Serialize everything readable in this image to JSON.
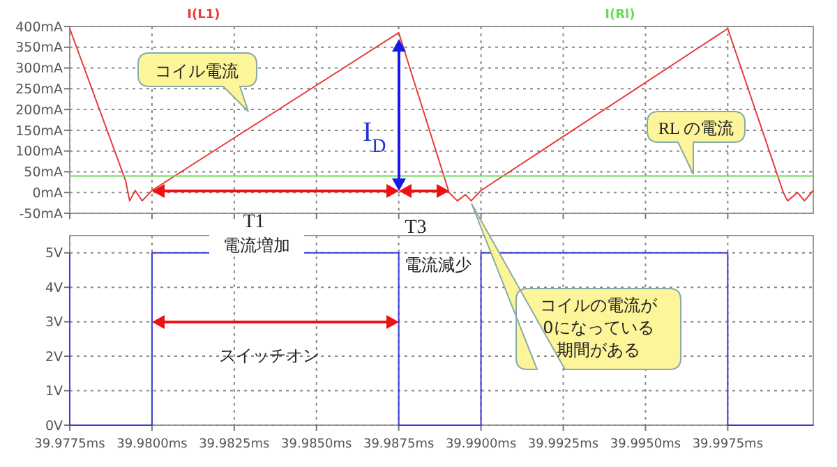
{
  "chart_data": [
    {
      "type": "line",
      "xlim": [
        39.9775,
        40.0001
      ],
      "ylim": [
        -50,
        400
      ],
      "xticks": [
        {
          "value": 39.9775,
          "label": null
        },
        {
          "value": 39.98,
          "label": null
        },
        {
          "value": 39.9825,
          "label": null
        },
        {
          "value": 39.985,
          "label": null
        },
        {
          "value": 39.9875,
          "label": null
        },
        {
          "value": 39.99,
          "label": null
        },
        {
          "value": 39.9925,
          "label": null
        },
        {
          "value": 39.995,
          "label": null
        },
        {
          "value": 39.9975,
          "label": null
        }
      ],
      "yticks": [
        {
          "value": -50,
          "label": "-50mA"
        },
        {
          "value": 0,
          "label": "0mA"
        },
        {
          "value": 50,
          "label": "50mA"
        },
        {
          "value": 100,
          "label": "100mA"
        },
        {
          "value": 150,
          "label": "150mA"
        },
        {
          "value": 200,
          "label": "200mA"
        },
        {
          "value": 250,
          "label": "250mA"
        },
        {
          "value": 300,
          "label": "300mA"
        },
        {
          "value": 350,
          "label": "350mA"
        },
        {
          "value": 400,
          "label": "400mA"
        }
      ],
      "tick_labels": "y",
      "grid": true,
      "legend": "top",
      "series": [
        {
          "name": "I(L1)",
          "color": "#e83a3a",
          "x": [
            39.9775,
            39.9792,
            39.97932,
            39.97949,
            39.9797,
            39.98,
            39.9875,
            39.98903,
            39.98928,
            39.98953,
            39.9897,
            39.99,
            39.9975,
            39.99919,
            39.99932,
            39.99962,
            39.99983,
            40.0001
          ],
          "values": [
            395,
            28,
            -20,
            5,
            -20,
            5,
            385,
            0,
            -20,
            -5,
            -20,
            5,
            395,
            0,
            -20,
            0,
            -20,
            5
          ]
        },
        {
          "name": "I(Rl)",
          "color": "#66dd55",
          "x": [
            39.9775,
            40.0001
          ],
          "values": [
            40,
            40
          ]
        }
      ],
      "annotations": [
        "コイル電流",
        "I$_{D}$",
        "RL の電流",
        "T1",
        "T3"
      ]
    },
    {
      "type": "line",
      "xlim": [
        39.9775,
        40.0001
      ],
      "ylim": [
        0,
        5.5
      ],
      "xticks": [
        {
          "value": 39.9775,
          "label": "39.9775ms"
        },
        {
          "value": 39.98,
          "label": "39.9800ms"
        },
        {
          "value": 39.9825,
          "label": "39.9825ms"
        },
        {
          "value": 39.985,
          "label": "39.9850ms"
        },
        {
          "value": 39.9875,
          "label": "39.9875ms"
        },
        {
          "value": 39.99,
          "label": "39.9900ms"
        },
        {
          "value": 39.9925,
          "label": "39.9925ms"
        },
        {
          "value": 39.995,
          "label": "39.9950ms"
        },
        {
          "value": 39.9975,
          "label": "39.9975ms"
        }
      ],
      "yticks": [
        {
          "value": 0,
          "label": "0V"
        },
        {
          "value": 1,
          "label": "1V"
        },
        {
          "value": 2,
          "label": "2V"
        },
        {
          "value": 3,
          "label": "3V"
        },
        {
          "value": 4,
          "label": "4V"
        },
        {
          "value": 5,
          "label": "5V"
        }
      ],
      "grid": true,
      "series": [
        {
          "color": "#3b3bd6",
          "x": [
            39.9775,
            39.9775,
            39.98,
            39.98,
            39.9875,
            39.9875,
            39.99,
            39.99,
            39.9975,
            39.9975,
            40.0001
          ],
          "values": [
            5,
            0,
            0,
            5,
            5,
            0,
            0,
            5,
            5,
            0,
            0
          ]
        }
      ],
      "annotations": [
        "電流増加",
        "電流減少",
        "スイッチオン",
        "コイルの電流が",
        "0になっている",
        "期間がある"
      ]
    }
  ]
}
